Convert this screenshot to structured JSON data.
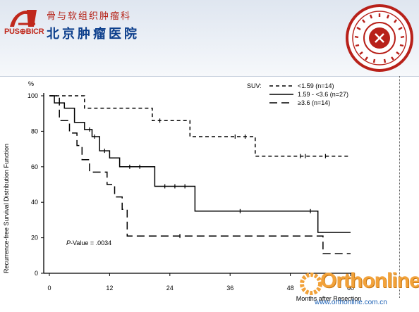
{
  "header": {
    "logo_text": "PUS⊕BICR",
    "department": "骨与软组织肿瘤科",
    "hospital": "北京肿瘤医院"
  },
  "watermark": {
    "brand": "Orthonline",
    "url": "www.orthonline.com.cn"
  },
  "colors": {
    "banner": "#e2e8f1",
    "dept_red": "#b51f14",
    "hosp_blue": "#0d3f8c",
    "seal_red": "#b8211a",
    "watermark_orange": "#f2a23a",
    "curve": "#000000"
  },
  "chart_data": {
    "type": "line",
    "subtype": "kaplan-meier step",
    "ylabel": "Recurrence-free Survival Distribution Function",
    "y_unit": "%",
    "xlabel": "Months after Resection",
    "xlim": [
      0,
      60
    ],
    "ylim": [
      0,
      100
    ],
    "x_ticks": [
      "0",
      "12",
      "24",
      "36",
      "48",
      "60"
    ],
    "y_ticks": [
      "0",
      "20",
      "40",
      "60",
      "80",
      "100"
    ],
    "legend_title": "SUV:",
    "legend_position": "top-right",
    "annotation": "P-Value = .0034",
    "series": [
      {
        "name": "<1.59 (n=14)",
        "style": "short-dash",
        "x": [
          0,
          7,
          7,
          20.5,
          20.5,
          28,
          28,
          41,
          41,
          60
        ],
        "y": [
          100,
          100,
          93,
          93,
          86,
          86,
          77,
          77,
          66,
          66
        ],
        "censor_x": [
          22,
          37,
          39,
          50,
          51,
          55
        ],
        "censor_y": [
          86,
          77,
          77,
          66,
          66,
          66
        ]
      },
      {
        "name": "1.59 - <3.6 (n=27)",
        "style": "solid",
        "x": [
          0,
          1,
          1,
          3,
          3,
          5,
          5,
          7,
          7,
          8.5,
          8.5,
          10,
          10,
          12,
          12,
          14,
          14,
          21,
          21,
          29,
          29,
          53.5,
          53.5,
          60
        ],
        "y": [
          100,
          100,
          96,
          96,
          93,
          93,
          85,
          85,
          81,
          81,
          77,
          77,
          69,
          69,
          65,
          65,
          60,
          60,
          49,
          49,
          35,
          35,
          23,
          23
        ],
        "censor_x": [
          8,
          9,
          11,
          16,
          18,
          23,
          25,
          27,
          38,
          52
        ],
        "censor_y": [
          81,
          77,
          69,
          60,
          60,
          49,
          49,
          49,
          35,
          35
        ]
      },
      {
        "name": "≥3.6 (n=14)",
        "style": "long-dash",
        "x": [
          0,
          2,
          2,
          4,
          4,
          5.5,
          5.5,
          6.5,
          6.5,
          8,
          8,
          11.5,
          11.5,
          13,
          13,
          14.5,
          14.5,
          15.5,
          15.5,
          54.5,
          54.5,
          60
        ],
        "y": [
          100,
          100,
          86,
          86,
          79,
          79,
          72,
          72,
          64,
          64,
          57,
          57,
          50,
          50,
          43,
          43,
          36,
          36,
          21,
          21,
          11,
          11
        ],
        "censor_x": [
          26
        ],
        "censor_y": [
          21
        ]
      }
    ]
  }
}
